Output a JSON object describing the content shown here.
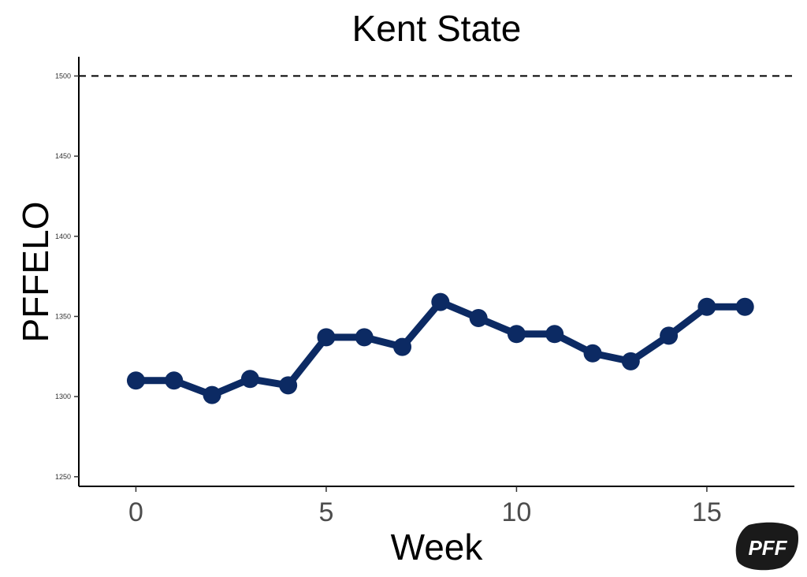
{
  "chart_data": {
    "type": "line",
    "title": "Kent State",
    "xlabel": "Week",
    "ylabel": "PFFELO",
    "x": [
      0,
      1,
      2,
      3,
      4,
      5,
      6,
      7,
      8,
      9,
      10,
      11,
      12,
      13,
      14,
      15,
      16
    ],
    "series": [
      {
        "values": [
          1310,
          1310,
          1301,
          1311,
          1307,
          1337,
          1337,
          1331,
          1359,
          1349,
          1339,
          1339,
          1327,
          1322,
          1338,
          1356,
          1356
        ]
      }
    ],
    "xlim": [
      -1.5,
      17.3
    ],
    "ylim": [
      1244,
      1512
    ],
    "x_ticks": [
      "0",
      "5",
      "10",
      "15"
    ],
    "y_ticks": [
      "1250",
      "1300",
      "1350",
      "1400",
      "1450",
      "1500"
    ],
    "reference_line": {
      "value": 1500,
      "style": "dashed"
    },
    "grid": false,
    "legend": "none",
    "colors": {
      "line": "#0c2a63",
      "reference": "#000000"
    }
  },
  "logo": {
    "text": "PFF",
    "color": "#1a1a1a"
  }
}
